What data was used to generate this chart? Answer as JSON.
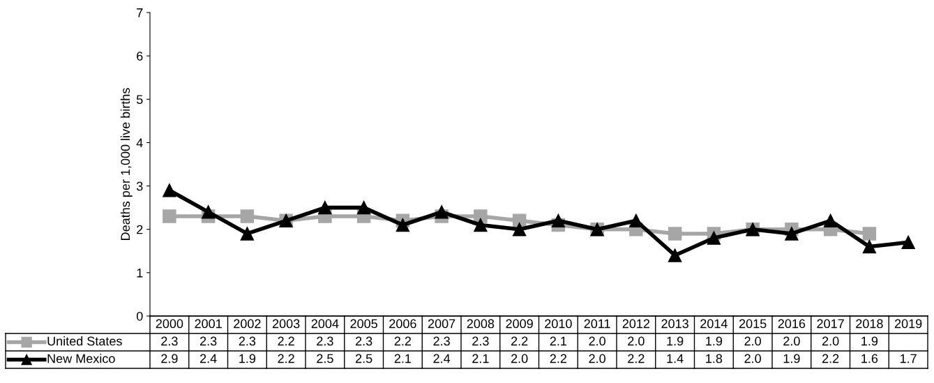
{
  "chart_data": {
    "type": "line",
    "ylabel": "Deaths per 1,000 live births",
    "categories": [
      "2000",
      "2001",
      "2002",
      "2003",
      "2004",
      "2005",
      "2006",
      "2007",
      "2008",
      "2009",
      "2010",
      "2011",
      "2012",
      "2013",
      "2014",
      "2015",
      "2016",
      "2017",
      "2018",
      "2019"
    ],
    "series": [
      {
        "name": "United States",
        "color": "#a6a6a6",
        "marker": "square",
        "values": [
          2.3,
          2.3,
          2.3,
          2.2,
          2.3,
          2.3,
          2.2,
          2.3,
          2.3,
          2.2,
          2.1,
          2.0,
          2.0,
          1.9,
          1.9,
          2.0,
          2.0,
          2.0,
          1.9,
          null
        ],
        "value_labels": [
          "2.3",
          "2.3",
          "2.3",
          "2.2",
          "2.3",
          "2.3",
          "2.2",
          "2.3",
          "2.3",
          "2.2",
          "2.1",
          "2.0",
          "2.0",
          "1.9",
          "1.9",
          "2.0",
          "2.0",
          "2.0",
          "1.9",
          null
        ]
      },
      {
        "name": "New Mexico",
        "color": "#000000",
        "marker": "triangle",
        "values": [
          2.9,
          2.4,
          1.9,
          2.2,
          2.5,
          2.5,
          2.1,
          2.4,
          2.1,
          2.0,
          2.2,
          2.0,
          2.2,
          1.4,
          1.8,
          2.0,
          1.9,
          2.2,
          1.6,
          1.7
        ],
        "value_labels": [
          "2.9",
          "2.4",
          "1.9",
          "2.2",
          "2.5",
          "2.5",
          "2.1",
          "2.4",
          "2.1",
          "2.0",
          "2.2",
          "2.0",
          "2.2",
          "1.4",
          "1.8",
          "2.0",
          "1.9",
          "2.2",
          "1.6",
          "1.7"
        ]
      }
    ],
    "ylim": [
      0,
      7
    ],
    "yticks": [
      0,
      1,
      2,
      3,
      4,
      5,
      6,
      7
    ],
    "legend": "bottom",
    "line_style": "solid"
  }
}
